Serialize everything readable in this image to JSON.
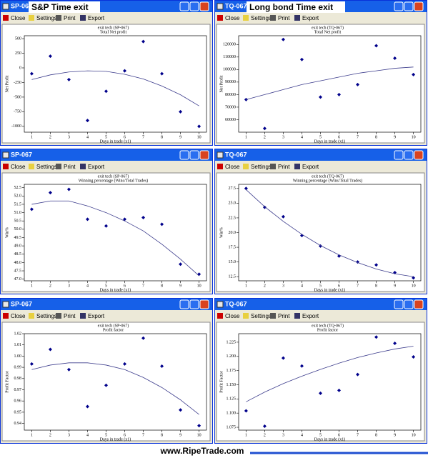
{
  "overlays": [
    "S&P Time exit",
    "Long bond Time exit"
  ],
  "toolbar": [
    "Close",
    "Settings",
    "Print",
    "Export"
  ],
  "footer": "www.RipeTrade.com",
  "chart_data": [
    {
      "type": "scatter",
      "window_title": "SP-067",
      "subtitle": "exit tech (SP-067)",
      "title": "Total Net profit",
      "x_label": "Days in trade (x1)",
      "y_label": "Net Profit",
      "x": [
        1,
        2,
        3,
        4,
        5,
        6,
        7,
        8,
        9,
        10
      ],
      "xlim": [
        0.6,
        10.4
      ],
      "xticks": [
        1,
        2,
        3,
        4,
        5,
        6,
        7,
        8,
        9,
        10
      ],
      "ylim": [
        -1100,
        550
      ],
      "yticks": [
        -1000,
        -750,
        -500,
        -250,
        0,
        250,
        500
      ],
      "series": [
        {
          "mode": "markers",
          "color": "#00008b",
          "values": [
            -100,
            200,
            -200,
            -900,
            -400,
            -50,
            450,
            -100,
            -750,
            -1000
          ]
        },
        {
          "mode": "line",
          "color": "#3c3c8c",
          "values": [
            -200,
            -120,
            -70,
            -50,
            -60,
            -110,
            -190,
            -310,
            -460,
            -650
          ]
        }
      ]
    },
    {
      "type": "scatter",
      "window_title": "TQ-067",
      "subtitle": "exit tech (TQ-067)",
      "title": "Total Net profit",
      "x_label": "Days in trade (x1)",
      "y_label": "Net Profit",
      "x": [
        1,
        2,
        3,
        4,
        5,
        6,
        7,
        8,
        9,
        10
      ],
      "xlim": [
        0.6,
        10.4
      ],
      "xticks": [
        1,
        2,
        3,
        4,
        5,
        6,
        7,
        8,
        9,
        10
      ],
      "ylim": [
        50000,
        127000
      ],
      "yticks": [
        60000,
        70000,
        80000,
        90000,
        100000,
        110000,
        120000
      ],
      "series": [
        {
          "mode": "markers",
          "color": "#00008b",
          "values": [
            76000,
            53000,
            124000,
            108000,
            78000,
            80000,
            88000,
            119000,
            109000,
            96000
          ]
        },
        {
          "mode": "line",
          "color": "#3c3c8c",
          "values": [
            76000,
            80000,
            84000,
            88000,
            91000,
            94000,
            97000,
            99000,
            101000,
            102000
          ]
        }
      ]
    },
    {
      "type": "scatter",
      "window_title": "SP-067",
      "subtitle": "exit tech (SP-067)",
      "title": "Winning percentage (Wins/Total Trades)",
      "x_label": "Days in trade (x1)",
      "y_label": "Win%",
      "x": [
        1,
        2,
        3,
        4,
        5,
        6,
        7,
        8,
        9,
        10
      ],
      "xlim": [
        0.6,
        10.4
      ],
      "xticks": [
        1,
        2,
        3,
        4,
        5,
        6,
        7,
        8,
        9,
        10
      ],
      "ylim": [
        46.9,
        52.7
      ],
      "yticks": [
        {
          "value": 47,
          "label": "47.0"
        },
        47.5,
        {
          "value": 48,
          "label": "48.0"
        },
        48.5,
        {
          "value": 49,
          "label": "49.0"
        },
        49.5,
        {
          "value": 50,
          "label": "50.0"
        },
        50.5,
        {
          "value": 51,
          "label": "51.0"
        },
        51.5,
        {
          "value": 52,
          "label": "52.0"
        },
        52.5
      ],
      "series": [
        {
          "mode": "markers",
          "color": "#00008b",
          "values": [
            51.2,
            52.2,
            52.4,
            50.6,
            50.2,
            50.6,
            50.7,
            50.3,
            47.9,
            47.3
          ]
        },
        {
          "mode": "line",
          "color": "#3c3c8c",
          "values": [
            51.5,
            51.7,
            51.7,
            51.4,
            51.0,
            50.5,
            49.9,
            49.1,
            48.2,
            47.2
          ]
        }
      ]
    },
    {
      "type": "scatter",
      "window_title": "TQ-067",
      "subtitle": "exit tech (TQ-067)",
      "title": "Winning percentage (Wins/Total Trades)",
      "x_label": "Days in trade (x1)",
      "y_label": "Win%",
      "x": [
        1,
        2,
        3,
        4,
        5,
        6,
        7,
        8,
        9,
        10
      ],
      "xlim": [
        0.6,
        10.4
      ],
      "xticks": [
        1,
        2,
        3,
        4,
        5,
        6,
        7,
        8,
        9,
        10
      ],
      "ylim": [
        11.8,
        28.2
      ],
      "yticks": [
        12.5,
        {
          "value": 15,
          "label": "15.0"
        },
        17.5,
        {
          "value": 20,
          "label": "20.0"
        },
        22.5,
        {
          "value": 25,
          "label": "25.0"
        },
        27.5
      ],
      "series": [
        {
          "mode": "markers",
          "color": "#00008b",
          "values": [
            27.5,
            24.3,
            22.7,
            19.5,
            17.7,
            16.0,
            15.0,
            14.5,
            13.2,
            12.3
          ]
        },
        {
          "mode": "line",
          "color": "#3c3c8c",
          "values": [
            27.3,
            24.4,
            21.9,
            19.7,
            17.8,
            16.2,
            14.9,
            13.8,
            13.0,
            12.5
          ]
        }
      ]
    },
    {
      "type": "scatter",
      "window_title": "SP-067",
      "subtitle": "exit tech (SP-067)",
      "title": "Profit factor",
      "x_label": "Days in trade (x1)",
      "y_label": "Profit Factor",
      "x": [
        1,
        2,
        3,
        4,
        5,
        6,
        7,
        8,
        9,
        10
      ],
      "xlim": [
        0.6,
        10.4
      ],
      "xticks": [
        1,
        2,
        3,
        4,
        5,
        6,
        7,
        8,
        9,
        10
      ],
      "ylim": [
        0.934,
        1.02
      ],
      "yticks": [
        0.94,
        0.95,
        0.96,
        0.97,
        0.98,
        0.99,
        {
          "value": 1,
          "label": "1.00"
        },
        1.01,
        1.02
      ],
      "series": [
        {
          "mode": "markers",
          "color": "#00008b",
          "values": [
            0.993,
            1.006,
            0.988,
            0.955,
            0.974,
            0.993,
            1.016,
            0.991,
            0.952,
            0.938
          ]
        },
        {
          "mode": "line",
          "color": "#3c3c8c",
          "values": [
            0.988,
            0.992,
            0.994,
            0.994,
            0.992,
            0.988,
            0.981,
            0.972,
            0.961,
            0.948
          ]
        }
      ]
    },
    {
      "type": "scatter",
      "window_title": "TQ-067",
      "subtitle": "exit tech (TQ-067)",
      "title": "Profit factor",
      "x_label": "Days in trade (x1)",
      "y_label": "Profit Factor",
      "x": [
        1,
        2,
        3,
        4,
        5,
        6,
        7,
        8,
        9,
        10
      ],
      "xlim": [
        0.6,
        10.4
      ],
      "xticks": [
        1,
        2,
        3,
        4,
        5,
        6,
        7,
        8,
        9,
        10
      ],
      "ylim": [
        1.07,
        1.24
      ],
      "yticks": [
        1.075,
        {
          "value": 1.1,
          "label": "1.100"
        },
        1.125,
        {
          "value": 1.15,
          "label": "1.150"
        },
        1.175,
        {
          "value": 1.2,
          "label": "1.200"
        },
        1.225
      ],
      "series": [
        {
          "mode": "markers",
          "color": "#00008b",
          "values": [
            1.104,
            1.077,
            1.197,
            1.183,
            1.135,
            1.14,
            1.168,
            1.234,
            1.223,
            1.199
          ]
        },
        {
          "mode": "line",
          "color": "#3c3c8c",
          "values": [
            1.12,
            1.137,
            1.152,
            1.165,
            1.177,
            1.188,
            1.198,
            1.206,
            1.213,
            1.218
          ]
        }
      ]
    }
  ]
}
